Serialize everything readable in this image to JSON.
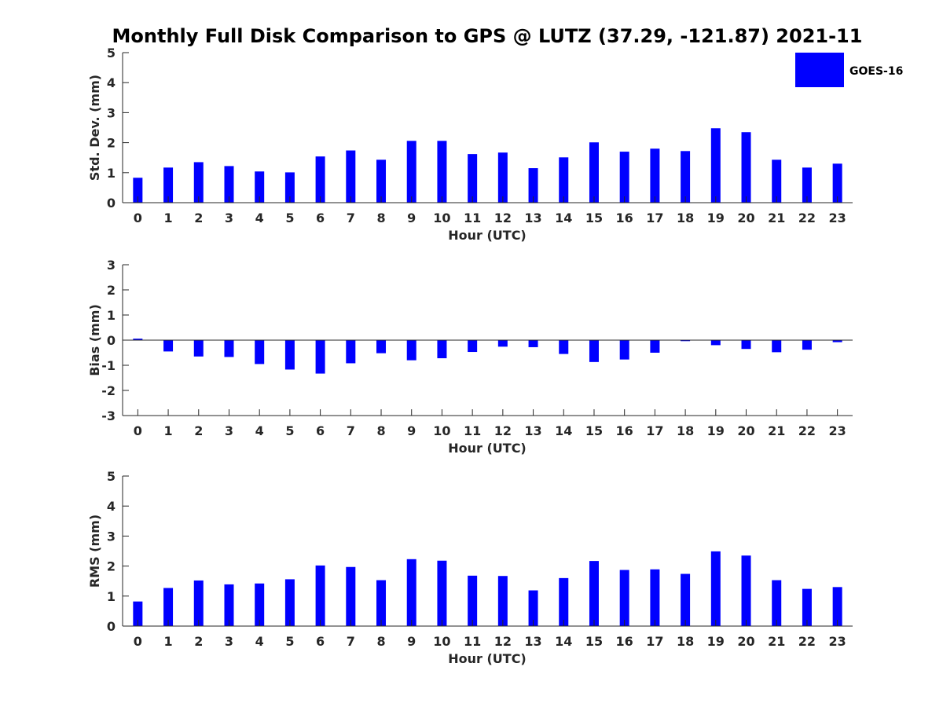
{
  "chart_data": {
    "type": "bar",
    "title": "Monthly Full Disk Comparison to GPS @ LUTZ (37.29, -121.87) 2021-11",
    "bar_color": "#0000ff",
    "legend": {
      "entries": [
        "GOES-16"
      ],
      "placement": "top-right"
    },
    "categories": [
      "0",
      "1",
      "2",
      "3",
      "4",
      "5",
      "6",
      "7",
      "8",
      "9",
      "10",
      "11",
      "12",
      "13",
      "14",
      "15",
      "16",
      "17",
      "18",
      "19",
      "20",
      "21",
      "22",
      "23"
    ],
    "panels": [
      {
        "name": "std-dev",
        "xlabel": "Hour (UTC)",
        "ylabel": "Std. Dev. (mm)",
        "ylim": [
          0,
          5
        ],
        "yticks": [
          0,
          1,
          2,
          3,
          4,
          5
        ],
        "series": [
          {
            "name": "GOES-16",
            "values": [
              0.83,
              1.17,
              1.35,
              1.22,
              1.04,
              1.01,
              1.54,
              1.74,
              1.43,
              2.06,
              2.06,
              1.62,
              1.67,
              1.15,
              1.51,
              2.01,
              1.7,
              1.8,
              1.72,
              2.48,
              2.35,
              1.43,
              1.17,
              1.3
            ]
          }
        ]
      },
      {
        "name": "bias",
        "xlabel": "Hour (UTC)",
        "ylabel": "Bias (mm)",
        "ylim": [
          -3,
          3
        ],
        "yticks": [
          -3,
          -2,
          -1,
          0,
          1,
          2,
          3
        ],
        "series": [
          {
            "name": "GOES-16",
            "values": [
              0.06,
              -0.45,
              -0.65,
              -0.67,
              -0.95,
              -1.17,
              -1.33,
              -0.92,
              -0.52,
              -0.8,
              -0.72,
              -0.47,
              -0.26,
              -0.28,
              -0.55,
              -0.87,
              -0.77,
              -0.5,
              -0.04,
              -0.2,
              -0.35,
              -0.48,
              -0.38,
              -0.08
            ]
          }
        ]
      },
      {
        "name": "rms",
        "xlabel": "Hour (UTC)",
        "ylabel": "RMS (mm)",
        "ylim": [
          0,
          5
        ],
        "yticks": [
          0,
          1,
          2,
          3,
          4,
          5
        ],
        "series": [
          {
            "name": "GOES-16",
            "values": [
              0.82,
              1.27,
              1.52,
              1.39,
              1.42,
              1.56,
              2.02,
              1.97,
              1.53,
              2.23,
              2.18,
              1.68,
              1.67,
              1.19,
              1.6,
              2.17,
              1.87,
              1.89,
              1.74,
              2.49,
              2.35,
              1.53,
              1.24,
              1.3
            ]
          }
        ]
      }
    ]
  }
}
